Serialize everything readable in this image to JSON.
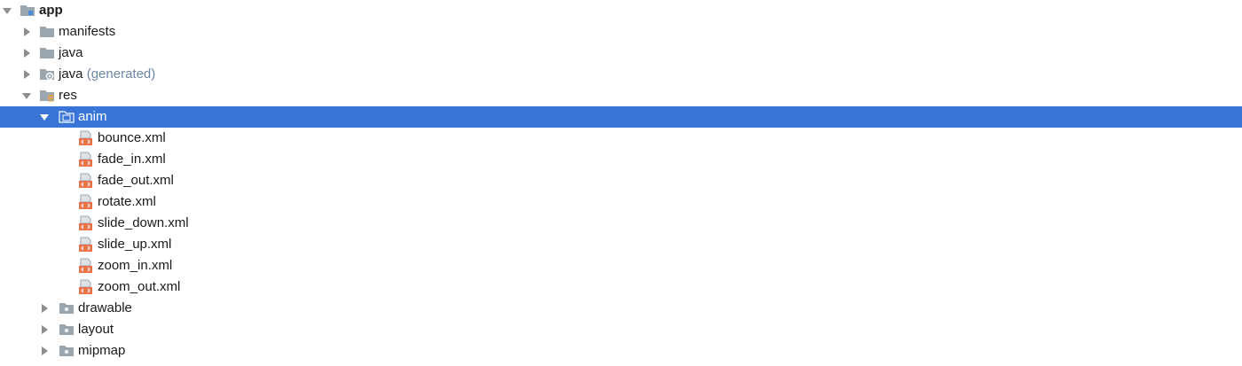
{
  "tree": {
    "app": {
      "label": "app"
    },
    "manifests": {
      "label": "manifests"
    },
    "java": {
      "label": "java"
    },
    "java_generated": {
      "label": "java",
      "suffix": "(generated)"
    },
    "res": {
      "label": "res"
    },
    "anim": {
      "label": "anim",
      "selected": true
    },
    "anim_files": [
      {
        "label": "bounce.xml"
      },
      {
        "label": "fade_in.xml"
      },
      {
        "label": "fade_out.xml"
      },
      {
        "label": "rotate.xml"
      },
      {
        "label": "slide_down.xml"
      },
      {
        "label": "slide_up.xml"
      },
      {
        "label": "zoom_in.xml"
      },
      {
        "label": "zoom_out.xml"
      }
    ],
    "drawable": {
      "label": "drawable"
    },
    "layout": {
      "label": "layout"
    },
    "mipmap": {
      "label": "mipmap"
    }
  },
  "colors": {
    "selection": "#3875d7",
    "folder": "#9aa7b0",
    "xml_badge": "#e8734a",
    "generated_suffix": "#6a87a5"
  }
}
